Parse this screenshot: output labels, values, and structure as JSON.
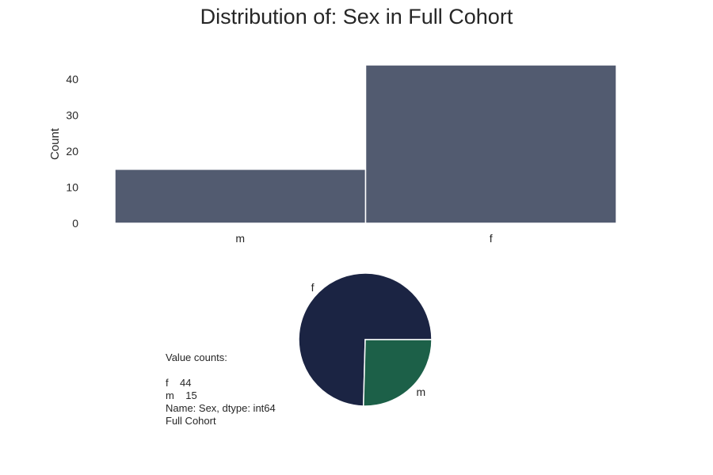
{
  "title": "Distribution of: Sex in Full Cohort",
  "colors": {
    "bar": "#525b70",
    "pie_f": "#1b2443",
    "pie_m": "#1c6048"
  },
  "chart_data": [
    {
      "type": "bar",
      "categories": [
        "m",
        "f"
      ],
      "values": [
        15,
        44
      ],
      "ylabel": "Count",
      "yticks": [
        0,
        10,
        20,
        30,
        40
      ],
      "ylim": [
        0,
        44
      ],
      "grid": false
    },
    {
      "type": "pie",
      "labels": [
        "f",
        "m"
      ],
      "values": [
        44,
        15
      ]
    }
  ],
  "value_counts_text": [
    "Value counts:",
    "",
    "f    44",
    "m    15",
    "Name: Sex, dtype: int64",
    "Full Cohort"
  ]
}
